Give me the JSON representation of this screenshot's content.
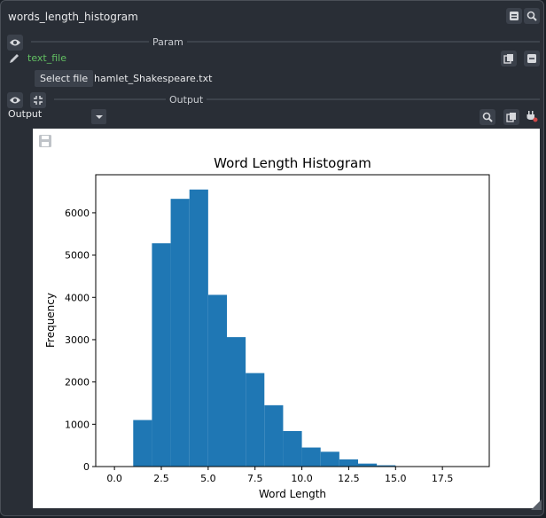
{
  "window": {
    "title": "words_length_histogram"
  },
  "param_section": {
    "label": "Param"
  },
  "text_file": {
    "label": "text_file",
    "button": "Select file",
    "filename": "hamlet_Shakespeare.txt"
  },
  "output_section": {
    "label": "Output",
    "port_label": "Output"
  },
  "icons": {
    "title_collapse": "collapse-icon",
    "title_zoom": "zoom-icon",
    "param_visibility": "eye-icon",
    "param_edit": "pencil-icon",
    "param_copy": "copy-icon",
    "param_remove": "minus-icon",
    "output_visibility": "eye-icon",
    "output_shrink": "shrink-icon",
    "output_dropdown": "chevron-down-icon",
    "output_zoom": "zoom-icon",
    "output_copy": "copy-icon",
    "output_plug": "plug-icon",
    "plot_save": "save-icon"
  },
  "colors": {
    "bar": "#1f77b4",
    "param_label": "#62c062",
    "panel": "#292e36"
  },
  "chart_data": {
    "type": "bar",
    "title": "Word Length Histogram",
    "xlabel": "Word Length",
    "ylabel": "Frequency",
    "bin_edges": [
      1,
      2,
      3,
      4,
      5,
      6,
      7,
      8,
      9,
      10,
      11,
      12,
      13,
      14,
      15,
      16,
      17,
      18,
      19
    ],
    "values": [
      1100,
      5280,
      6330,
      6550,
      4060,
      3060,
      2210,
      1450,
      840,
      450,
      350,
      170,
      70,
      30,
      10,
      5,
      2,
      1
    ],
    "xlim": [
      -1,
      20
    ],
    "ylim": [
      0,
      6900
    ],
    "xticks": [
      "0.0",
      "2.5",
      "5.0",
      "7.5",
      "10.0",
      "12.5",
      "15.0",
      "17.5"
    ],
    "yticks": [
      "0",
      "1000",
      "2000",
      "3000",
      "4000",
      "5000",
      "6000"
    ],
    "grid": false
  }
}
